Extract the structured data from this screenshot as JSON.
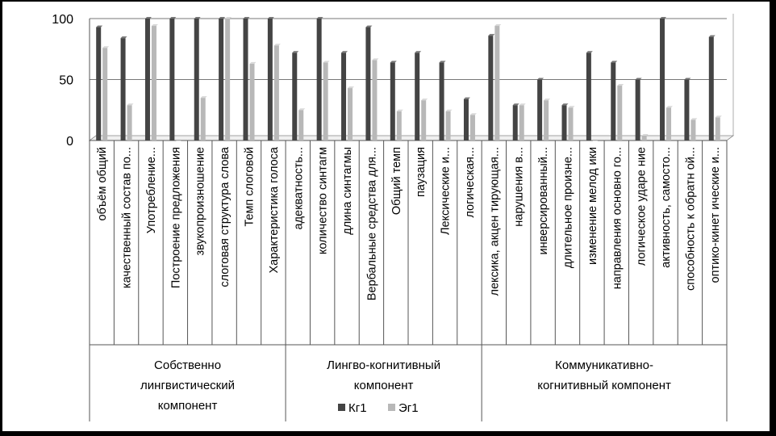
{
  "chart_data": {
    "type": "bar",
    "ylim": [
      0,
      100
    ],
    "yticks": [
      0,
      50,
      100
    ],
    "grid": true,
    "legend_position": "bottom",
    "colors": {
      "kg1": "#444444",
      "eg1": "#b8b8b8",
      "background": "#ffffff",
      "frame": "#000000"
    },
    "categories": [
      "объём общий",
      "качественный состав по...",
      "Употребление...",
      "Построение предложения",
      "звукопроизношение",
      "слоговая структура слова",
      "Темп слоговой",
      "Характеристика голоса",
      "адекватность...",
      "количество синтагм",
      "длина синтагмы",
      "Вербальные средства для...",
      "Общий темп",
      "паузация",
      "Лексические и...",
      "логическая...",
      "лексика, акцен тирующая...",
      "нарушения в...",
      "инверсированный...",
      "длительное произне...",
      "изменение мелод ики",
      "направления основно го...",
      "логическое ударе ние",
      "активность, самосто...",
      "способность к обратн ой...",
      "оптико-кинет ические и..."
    ],
    "groups": [
      {
        "lines": [
          "Собственно",
          "лингвистический",
          "компонент"
        ],
        "start": 0,
        "end": 7
      },
      {
        "lines": [
          "Лингво-когнитивный",
          "компонент"
        ],
        "start": 8,
        "end": 15
      },
      {
        "lines": [
          "Коммуникативно-",
          "когнитивный компонент"
        ],
        "start": 16,
        "end": 25
      }
    ],
    "series": [
      {
        "name": "Кг1",
        "values": [
          93,
          84,
          100,
          100,
          100,
          100,
          100,
          100,
          72,
          100,
          72,
          93,
          64,
          72,
          64,
          34,
          86,
          29,
          50,
          29,
          72,
          64,
          50,
          100,
          50,
          85
        ]
      },
      {
        "name": "Эг1",
        "values": [
          76,
          29,
          94,
          0,
          35,
          100,
          63,
          78,
          25,
          64,
          43,
          66,
          24,
          33,
          24,
          21,
          94,
          29,
          33,
          27,
          0,
          45,
          4,
          27,
          17,
          19
        ]
      }
    ]
  }
}
